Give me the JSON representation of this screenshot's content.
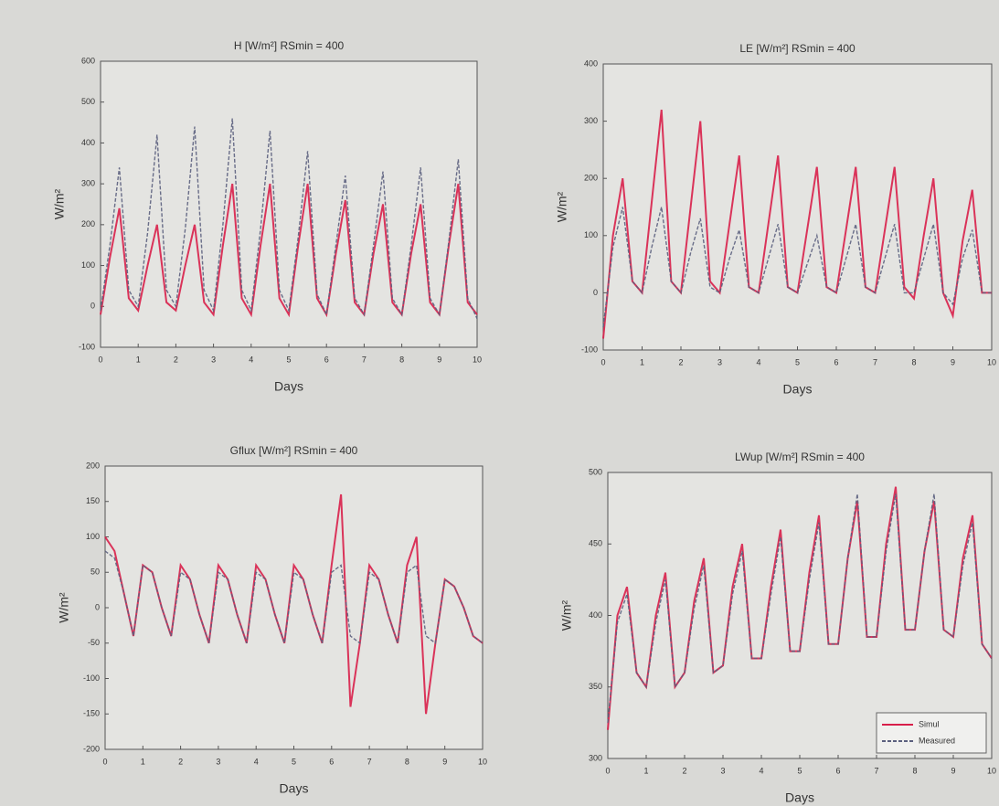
{
  "chart_data": [
    {
      "type": "line",
      "title": "H [W/m²] RSmin = 400",
      "xlabel": "Days",
      "ylabel": "W/m²",
      "x": [
        0,
        0.25,
        0.5,
        0.75,
        1,
        1.25,
        1.5,
        1.75,
        2,
        2.25,
        2.5,
        2.75,
        3,
        3.25,
        3.5,
        3.75,
        4,
        4.25,
        4.5,
        4.75,
        5,
        5.25,
        5.5,
        5.75,
        6,
        6.25,
        6.5,
        6.75,
        7,
        7.25,
        7.5,
        7.75,
        8,
        8.25,
        8.5,
        8.75,
        9,
        9.25,
        9.5,
        9.75,
        10
      ],
      "xlim": [
        0,
        10
      ],
      "xticks": [
        0,
        1,
        2,
        3,
        4,
        5,
        6,
        7,
        8,
        9,
        10
      ],
      "ylim": [
        -100,
        600
      ],
      "yticks": [
        -100,
        0,
        100,
        200,
        300,
        400,
        500,
        600
      ],
      "series": [
        {
          "color": "#d81f4a",
          "values": [
            -20,
            120,
            240,
            20,
            -10,
            100,
            200,
            10,
            -10,
            100,
            200,
            10,
            -20,
            150,
            300,
            20,
            -20,
            150,
            300,
            20,
            -20,
            150,
            300,
            20,
            -20,
            130,
            260,
            10,
            -20,
            130,
            250,
            10,
            -20,
            130,
            250,
            10,
            -20,
            150,
            300,
            10,
            -20
          ]
        },
        {
          "color": "#5b5f7e",
          "values": [
            -10,
            150,
            340,
            40,
            0,
            180,
            420,
            40,
            0,
            190,
            440,
            40,
            -10,
            200,
            460,
            40,
            -10,
            190,
            430,
            40,
            -10,
            170,
            380,
            30,
            -20,
            150,
            320,
            20,
            -20,
            150,
            330,
            20,
            -20,
            150,
            340,
            20,
            -20,
            160,
            360,
            20,
            -30
          ]
        }
      ]
    },
    {
      "type": "line",
      "title": "LE [W/m²] RSmin = 400",
      "xlabel": "Days",
      "ylabel": "W/m²",
      "x": [
        0,
        0.25,
        0.5,
        0.75,
        1,
        1.25,
        1.5,
        1.75,
        2,
        2.25,
        2.5,
        2.75,
        3,
        3.25,
        3.5,
        3.75,
        4,
        4.25,
        4.5,
        4.75,
        5,
        5.25,
        5.5,
        5.75,
        6,
        6.25,
        6.5,
        6.75,
        7,
        7.25,
        7.5,
        7.75,
        8,
        8.25,
        8.5,
        8.75,
        9,
        9.25,
        9.5,
        9.75,
        10
      ],
      "xlim": [
        0,
        10
      ],
      "xticks": [
        0,
        1,
        2,
        3,
        4,
        5,
        6,
        7,
        8,
        9,
        10
      ],
      "ylim": [
        -100,
        400
      ],
      "yticks": [
        -100,
        0,
        100,
        200,
        300,
        400
      ],
      "series": [
        {
          "color": "#d81f4a",
          "values": [
            -80,
            100,
            200,
            20,
            0,
            160,
            320,
            20,
            0,
            150,
            300,
            20,
            0,
            120,
            240,
            10,
            0,
            120,
            240,
            10,
            0,
            110,
            220,
            10,
            0,
            110,
            220,
            10,
            0,
            110,
            220,
            10,
            -10,
            100,
            200,
            0,
            -40,
            90,
            180,
            0,
            0
          ]
        },
        {
          "color": "#5b5f7e",
          "values": [
            -60,
            80,
            150,
            20,
            0,
            80,
            150,
            20,
            0,
            70,
            130,
            10,
            0,
            60,
            110,
            10,
            0,
            60,
            120,
            10,
            0,
            50,
            100,
            10,
            0,
            60,
            120,
            10,
            0,
            60,
            120,
            0,
            0,
            60,
            120,
            0,
            -20,
            60,
            110,
            0,
            0
          ]
        }
      ]
    },
    {
      "type": "line",
      "title": "Gflux [W/m²] RSmin = 400",
      "xlabel": "Days",
      "ylabel": "W/m²",
      "x": [
        0,
        0.25,
        0.5,
        0.75,
        1,
        1.25,
        1.5,
        1.75,
        2,
        2.25,
        2.5,
        2.75,
        3,
        3.25,
        3.5,
        3.75,
        4,
        4.25,
        4.5,
        4.75,
        5,
        5.25,
        5.5,
        5.75,
        6,
        6.25,
        6.5,
        6.75,
        7,
        7.25,
        7.5,
        7.75,
        8,
        8.25,
        8.5,
        8.75,
        9,
        9.25,
        9.5,
        9.75,
        10
      ],
      "xlim": [
        0,
        10
      ],
      "xticks": [
        0,
        1,
        2,
        3,
        4,
        5,
        6,
        7,
        8,
        9,
        10
      ],
      "ylim": [
        -200,
        200
      ],
      "yticks": [
        -200,
        -150,
        -100,
        -50,
        0,
        50,
        100,
        150,
        200
      ],
      "series": [
        {
          "color": "#d81f4a",
          "values": [
            100,
            80,
            20,
            -40,
            60,
            50,
            0,
            -40,
            60,
            40,
            -10,
            -50,
            60,
            40,
            -10,
            -50,
            60,
            40,
            -10,
            -50,
            60,
            40,
            -10,
            -50,
            60,
            160,
            -140,
            -50,
            60,
            40,
            -10,
            -50,
            60,
            100,
            -150,
            -50,
            40,
            30,
            0,
            -40,
            -50
          ]
        },
        {
          "color": "#5b5f7e",
          "values": [
            80,
            70,
            20,
            -40,
            60,
            50,
            0,
            -40,
            50,
            40,
            -10,
            -50,
            50,
            40,
            -10,
            -50,
            50,
            40,
            -10,
            -50,
            50,
            40,
            -10,
            -50,
            50,
            60,
            -40,
            -50,
            50,
            40,
            -10,
            -50,
            50,
            60,
            -40,
            -50,
            40,
            30,
            0,
            -40,
            -50
          ]
        }
      ]
    },
    {
      "type": "line",
      "title": "LWup [W/m²] RSmin = 400",
      "xlabel": "Days",
      "ylabel": "W/m²",
      "x": [
        0,
        0.25,
        0.5,
        0.75,
        1,
        1.25,
        1.5,
        1.75,
        2,
        2.25,
        2.5,
        2.75,
        3,
        3.25,
        3.5,
        3.75,
        4,
        4.25,
        4.5,
        4.75,
        5,
        5.25,
        5.5,
        5.75,
        6,
        6.25,
        6.5,
        6.75,
        7,
        7.25,
        7.5,
        7.75,
        8,
        8.25,
        8.5,
        8.75,
        9,
        9.25,
        9.5,
        9.75,
        10
      ],
      "xlim": [
        0,
        10
      ],
      "xticks": [
        0,
        1,
        2,
        3,
        4,
        5,
        6,
        7,
        8,
        9,
        10
      ],
      "ylim": [
        300,
        500
      ],
      "yticks": [
        300,
        350,
        400,
        450,
        500
      ],
      "legend": "lower right",
      "series": [
        {
          "name": "Simul",
          "color": "#d81f4a",
          "values": [
            320,
            400,
            420,
            360,
            350,
            400,
            430,
            350,
            360,
            410,
            440,
            360,
            365,
            420,
            450,
            370,
            370,
            420,
            460,
            375,
            375,
            430,
            470,
            380,
            380,
            440,
            480,
            385,
            385,
            450,
            490,
            390,
            390,
            445,
            480,
            390,
            385,
            440,
            470,
            380,
            370
          ]
        },
        {
          "name": "Measured",
          "color": "#5b5f7e",
          "values": [
            325,
            395,
            415,
            360,
            350,
            395,
            425,
            350,
            360,
            405,
            435,
            360,
            365,
            415,
            445,
            370,
            370,
            415,
            455,
            375,
            375,
            425,
            465,
            380,
            380,
            440,
            485,
            385,
            385,
            445,
            485,
            390,
            390,
            445,
            485,
            390,
            385,
            435,
            465,
            380,
            370
          ]
        }
      ]
    }
  ]
}
